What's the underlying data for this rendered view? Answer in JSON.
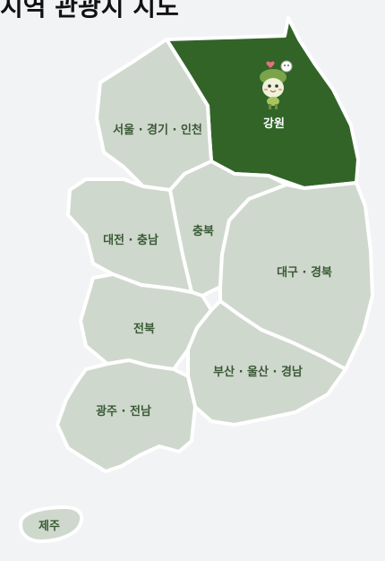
{
  "page": {
    "title": "지역 관광지 지도"
  },
  "colors": {
    "background": "#f2f3f5",
    "region_default": "#cfd8cd",
    "region_selected": "#326428",
    "label_default": "#3a5a36",
    "label_selected": "#ffffff"
  },
  "regions": [
    {
      "id": "gangwon",
      "label": "강원",
      "selected": true
    },
    {
      "id": "seoul-gyeonggi-incheon",
      "label": "서울 · 경기 · 인천",
      "selected": false
    },
    {
      "id": "daejeon-chungnam",
      "label": "대전 · 충남",
      "selected": false
    },
    {
      "id": "chungbuk",
      "label": "충북",
      "selected": false
    },
    {
      "id": "daegu-gyeongbuk",
      "label": "대구 · 경북",
      "selected": false
    },
    {
      "id": "jeonbuk",
      "label": "전북",
      "selected": false
    },
    {
      "id": "busan-ulsan-gyeongnam",
      "label": "부산 · 울산 · 경남",
      "selected": false
    },
    {
      "id": "gwangju-jeonnam",
      "label": "광주 · 전남",
      "selected": false
    },
    {
      "id": "jeju",
      "label": "제주",
      "selected": false
    }
  ],
  "mascot": {
    "icon": "mascot-icon"
  }
}
